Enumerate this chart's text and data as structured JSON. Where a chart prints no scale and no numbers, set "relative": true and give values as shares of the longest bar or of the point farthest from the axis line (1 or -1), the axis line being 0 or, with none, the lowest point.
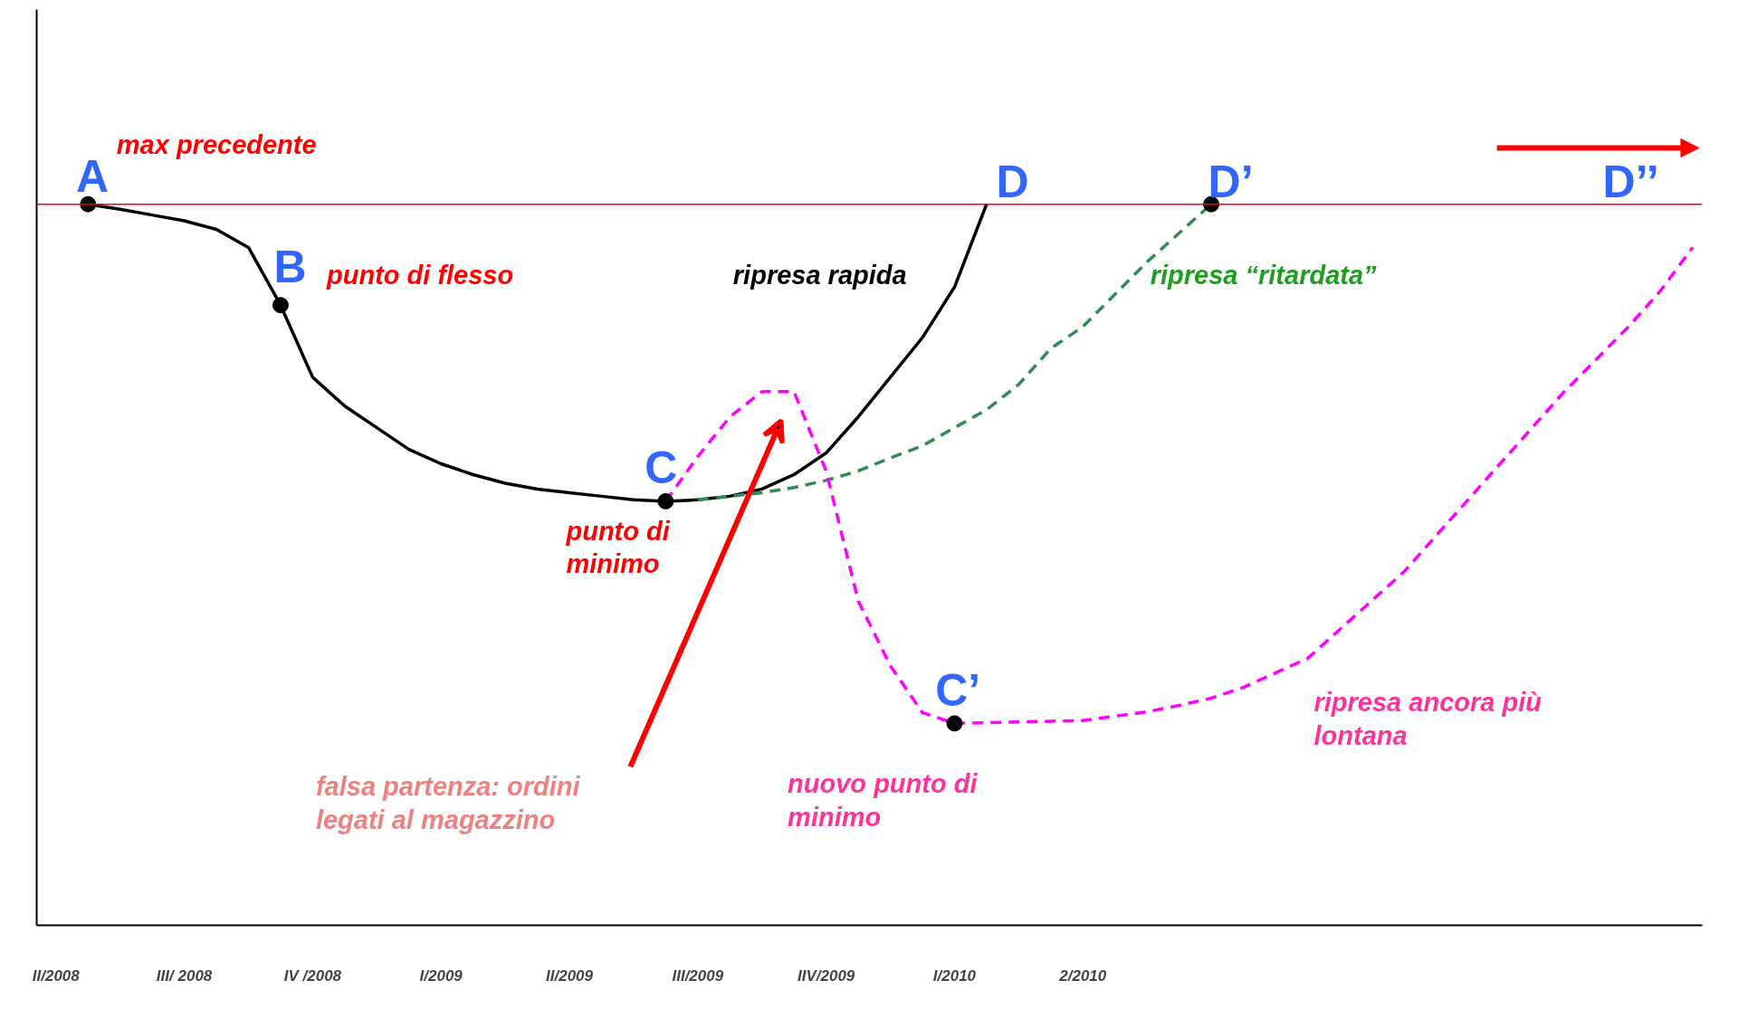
{
  "chart_data": {
    "type": "line",
    "relative": true,
    "categories": [
      "II/2008",
      null,
      null,
      null,
      "III/ 2008",
      null,
      null,
      null,
      "IV /2008",
      null,
      null,
      null,
      "I/2009",
      null,
      null,
      null,
      "II/2009",
      null,
      null,
      null,
      "III/2009",
      null,
      null,
      null,
      "IIV/2009",
      null,
      null,
      null,
      "I/2010",
      null,
      null,
      null,
      "2/2010",
      null,
      null,
      null,
      null,
      null,
      null,
      null,
      null,
      null,
      null,
      null,
      null,
      null,
      null,
      null,
      null,
      null,
      null,
      null
    ],
    "series": [
      {
        "color": "#000000",
        "line_style": "solid",
        "values": [
          null,
          1.0,
          0.993,
          0.985,
          0.977,
          0.965,
          0.94,
          0.86,
          0.76,
          0.72,
          0.69,
          0.66,
          0.64,
          0.625,
          0.613,
          0.605,
          0.6,
          0.595,
          0.59,
          0.588,
          0.59,
          0.595,
          0.605,
          0.625,
          0.655,
          0.705,
          0.76,
          0.815,
          0.885,
          1.0,
          null,
          null,
          null,
          null,
          null,
          null,
          null,
          null,
          null,
          null,
          null,
          null,
          null,
          null,
          null,
          null,
          null,
          null,
          null,
          null,
          null,
          null
        ]
      },
      {
        "color": "#2e8b57",
        "line_style": "dashed",
        "values": [
          null,
          null,
          null,
          null,
          null,
          null,
          null,
          null,
          null,
          null,
          null,
          null,
          null,
          null,
          null,
          null,
          null,
          null,
          null,
          null,
          0.59,
          0.595,
          0.6,
          0.607,
          0.617,
          0.63,
          0.648,
          0.665,
          0.69,
          0.715,
          0.75,
          0.8,
          0.83,
          0.875,
          0.92,
          0.96,
          1.0,
          null,
          null,
          null,
          null,
          null,
          null,
          null,
          null,
          null,
          null,
          null,
          null,
          null,
          null,
          null
        ]
      },
      {
        "color": "#ff00ff",
        "line_style": "dashed",
        "values": [
          null,
          null,
          null,
          null,
          null,
          null,
          null,
          null,
          null,
          null,
          null,
          null,
          null,
          null,
          null,
          null,
          null,
          null,
          null,
          0.588,
          0.65,
          0.705,
          0.74,
          0.74,
          0.63,
          0.45,
          0.36,
          0.295,
          0.28,
          0.281,
          0.282,
          0.283,
          0.284,
          0.29,
          0.296,
          0.305,
          0.315,
          0.33,
          0.35,
          0.37,
          0.41,
          0.45,
          0.49,
          0.54,
          0.59,
          0.64,
          0.69,
          0.74,
          0.785,
          0.83,
          0.88,
          0.94
        ]
      },
      {
        "type": "scatter",
        "marker": "circle",
        "color": "#000000",
        "values": [
          null,
          1.0,
          null,
          null,
          null,
          null,
          null,
          0.86,
          null,
          null,
          null,
          null,
          null,
          null,
          null,
          null,
          null,
          null,
          null,
          0.588,
          null,
          null,
          null,
          null,
          null,
          null,
          null,
          null,
          0.28,
          null,
          null,
          null,
          null,
          null,
          null,
          null,
          1.0,
          null,
          null,
          null,
          null,
          null,
          null,
          null,
          null,
          null,
          null,
          null,
          null,
          null,
          null,
          null
        ]
      }
    ],
    "ref_lines": [
      {
        "axis": "y",
        "value": 1.0,
        "color": "#ff0000"
      }
    ],
    "annotations": [
      "A",
      "B",
      "C",
      "D",
      "D’",
      "D’’",
      "C’",
      "max precedente",
      "punto di flesso",
      "ripresa rapida",
      "ripresa “ritardata”",
      "punto di\nminimo",
      "falsa partenza: ordini\nlegati al magazzino",
      "nuovo punto di\nminimo",
      "ripresa  ancora più\nlontana"
    ]
  }
}
